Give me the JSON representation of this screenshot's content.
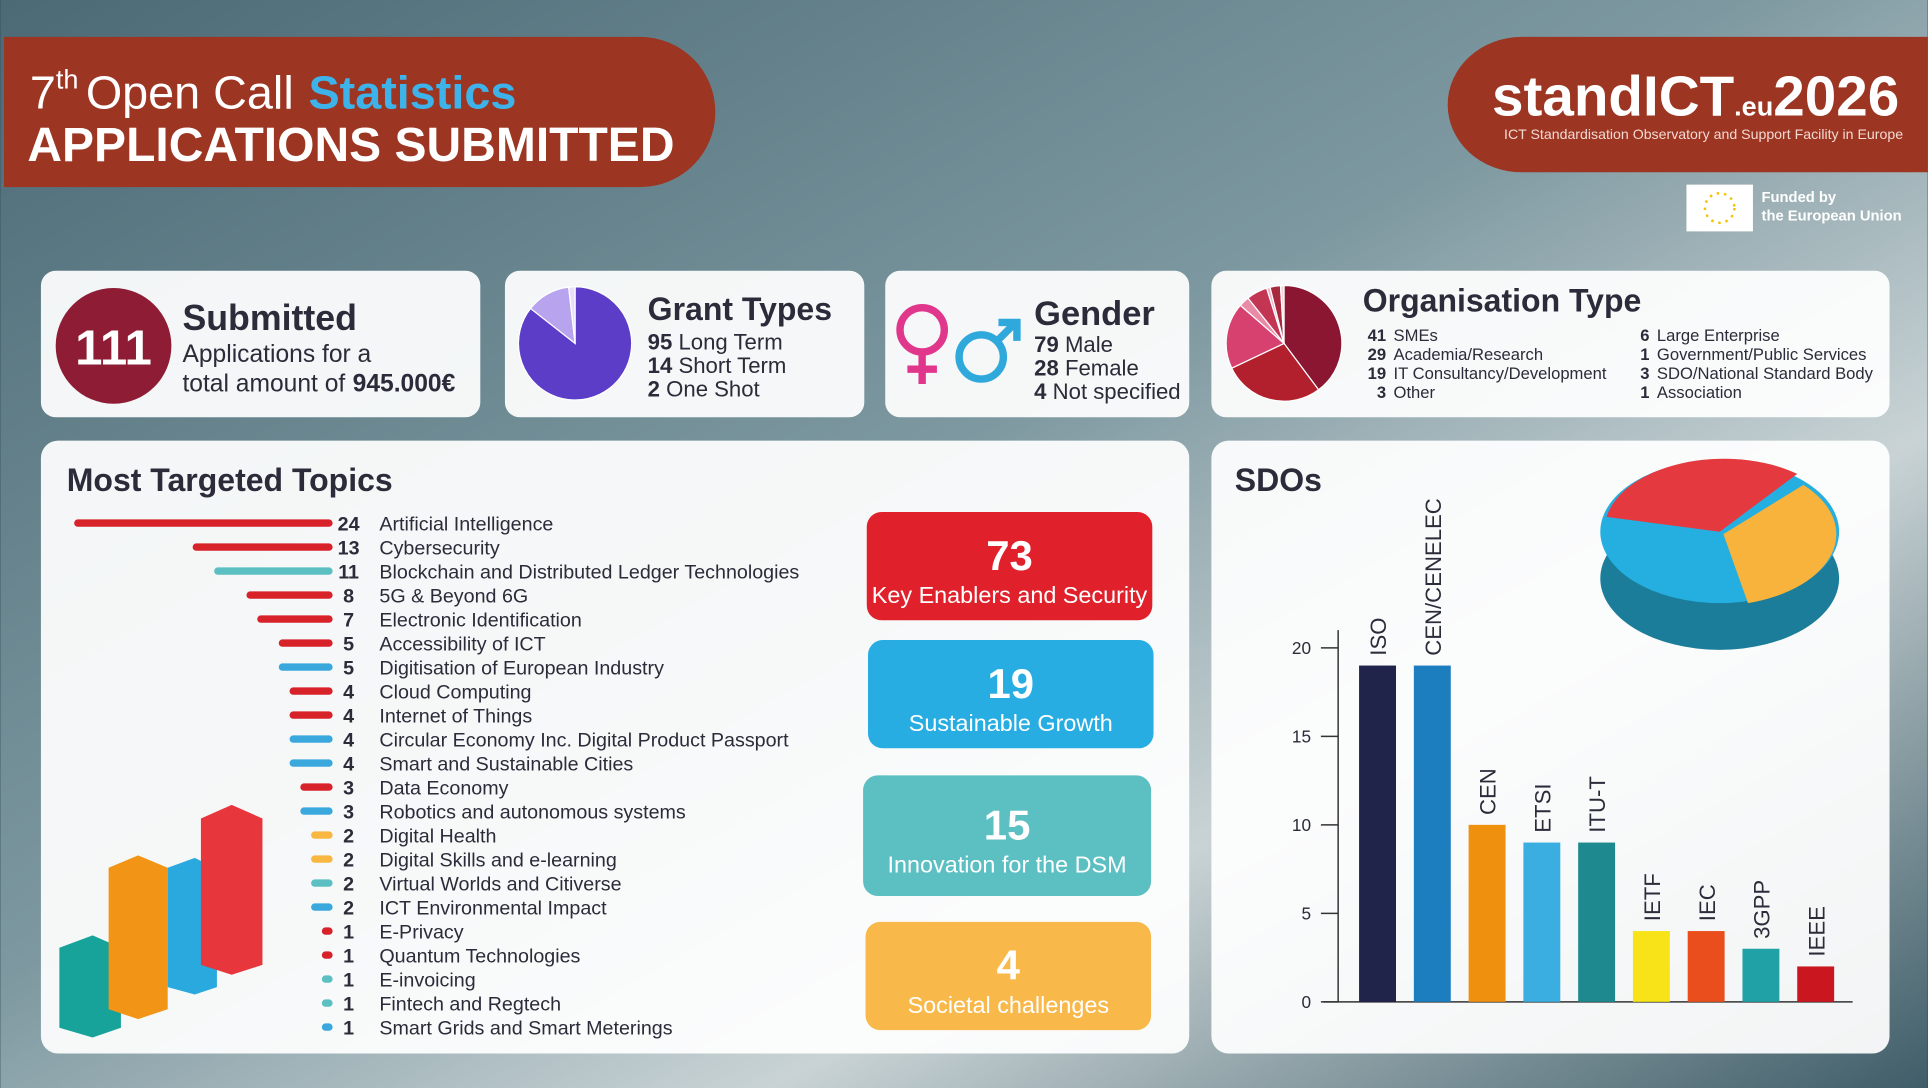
{
  "header": {
    "ordinal": "7",
    "ordinal_suffix": "th",
    "title_1": "Open Call",
    "title_2": "Statistics",
    "subtitle": "APPLICATIONS SUBMITTED"
  },
  "logo": {
    "name": "standICT",
    "domain": ".eu",
    "year": "2026",
    "tagline": "ICT Standardisation Observatory and Support Facility in Europe",
    "funded_1": "Funded by",
    "funded_2": "the European Union"
  },
  "submitted": {
    "count": "111",
    "title": "Submitted",
    "line_1": "Applications for a",
    "line_2": "total amount of",
    "amount": "945.000€"
  },
  "gender": {
    "title": "Gender",
    "values": [
      79,
      28,
      4
    ],
    "labels": [
      "Male",
      "Female",
      "Not specified"
    ]
  },
  "pillars": [
    {
      "value": 73,
      "label": "Key Enablers and Security",
      "color": "#e0212b"
    },
    {
      "value": 19,
      "label": "Sustainable Growth",
      "color": "#27ade2"
    },
    {
      "value": 15,
      "label": "Innovation for the DSM",
      "color": "#5cbfc2"
    },
    {
      "value": 4,
      "label": "Societal challenges",
      "color": "#f8b84a"
    }
  ],
  "chart_data": [
    {
      "type": "pie",
      "title": "Grant Types",
      "categories": [
        "Long Term",
        "Short Term",
        "One Shot"
      ],
      "values": [
        95,
        14,
        2
      ],
      "colors": [
        "#5b3dc8",
        "#b7a3ee",
        "#e6defa"
      ]
    },
    {
      "type": "pie",
      "title": "Organisation Type",
      "categories": [
        "SMEs",
        "Academia/Research",
        "IT Consultancy/Development",
        "Other",
        "Large Enterprise",
        "Government/Public Services",
        "SDO/National Standard Body",
        "Association"
      ],
      "values": [
        41,
        29,
        19,
        3,
        6,
        1,
        3,
        1
      ],
      "colors": [
        "#8a1632",
        "#b3202d",
        "#d6416f",
        "#e98aa6",
        "#c23654",
        "#f2b3c4",
        "#a8283e",
        "#f7d4dd"
      ]
    },
    {
      "type": "hbar",
      "title": "Most Targeted Topics",
      "categories": [
        "Artificial Intelligence",
        "Cybersecurity",
        "Blockchain and Distributed Ledger Technologies",
        "5G & Beyond 6G",
        "Electronic Identification",
        "Accessibility of ICT",
        "Digitisation of European Industry",
        "Cloud Computing",
        "Internet of Things",
        "Circular Economy Inc. Digital Product Passport",
        "Smart and Sustainable Cities",
        "Data Economy",
        "Robotics and autonomous systems",
        "Digital Health",
        "Digital Skills and e-learning",
        "Virtual Worlds and Citiverse",
        "ICT Environmental Impact",
        "E-Privacy",
        "Quantum Technologies",
        "E-invoicing",
        "Fintech and Regtech",
        "Smart Grids and Smart Meterings"
      ],
      "values": [
        24,
        13,
        11,
        8,
        7,
        5,
        5,
        4,
        4,
        4,
        4,
        3,
        3,
        2,
        2,
        2,
        2,
        1,
        1,
        1,
        1,
        1
      ],
      "colors": [
        "#d7222a",
        "#d7222a",
        "#5cbfc2",
        "#d7222a",
        "#d7222a",
        "#d7222a",
        "#3aa8dc",
        "#d7222a",
        "#d7222a",
        "#3aa8dc",
        "#3aa8dc",
        "#d7222a",
        "#3aa8dc",
        "#f7b740",
        "#f7b740",
        "#5cbfc2",
        "#3aa8dc",
        "#d7222a",
        "#d7222a",
        "#5cbfc2",
        "#5cbfc2",
        "#3aa8dc"
      ],
      "xlim": [
        0,
        24
      ]
    },
    {
      "type": "bar",
      "title": "SDOs",
      "categories": [
        "ISO",
        "CEN/CENELEC",
        "CEN",
        "ETSI",
        "ITU-T",
        "IETF",
        "IEC",
        "3GPP",
        "IEEE"
      ],
      "values": [
        19,
        19,
        10,
        9,
        9,
        4,
        4,
        3,
        2
      ],
      "colors": [
        "#20234a",
        "#1d7ebf",
        "#f0900f",
        "#3aaee0",
        "#1e8a8f",
        "#f7e318",
        "#ea4e1d",
        "#1fa1a6",
        "#c9161f"
      ],
      "ylim": [
        0,
        21
      ],
      "yticks": [
        0,
        5,
        10,
        15,
        20
      ]
    }
  ]
}
